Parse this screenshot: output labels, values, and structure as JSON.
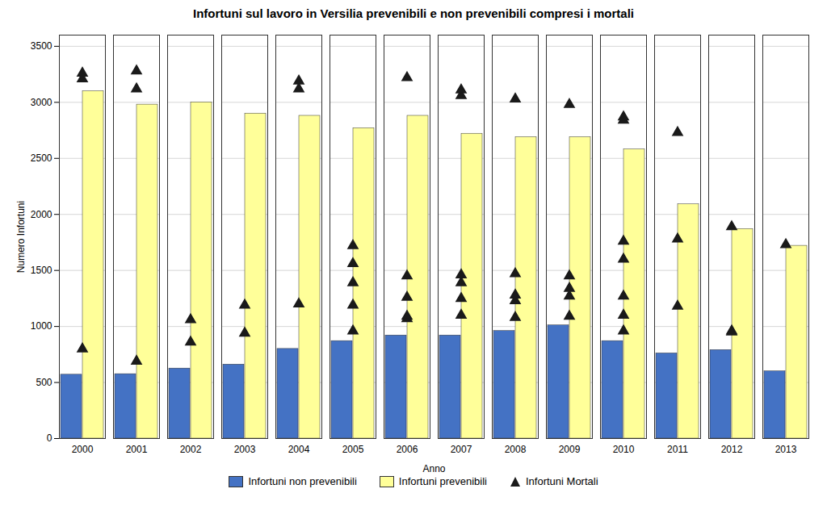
{
  "chart_data": {
    "type": "bar",
    "title": "Infortuni sul lavoro in Versilia prevenibili e non prevenibili compresi i mortali",
    "x_label": "Anno",
    "y_label": "Numero Infortuni",
    "categories": [
      "2000",
      "2001",
      "2002",
      "2003",
      "2004",
      "2005",
      "2006",
      "2007",
      "2008",
      "2009",
      "2010",
      "2011",
      "2012",
      "2013"
    ],
    "series": [
      {
        "name": "Infortuni non prevenibili",
        "color": "#4472C4",
        "type": "bar",
        "values": [
          570,
          575,
          625,
          660,
          800,
          870,
          920,
          920,
          960,
          1010,
          870,
          760,
          790,
          600
        ]
      },
      {
        "name": "Infortuni prevenibili",
        "color": "#FFFF99",
        "type": "bar",
        "values": [
          3100,
          2980,
          3000,
          2900,
          2880,
          2770,
          2880,
          2720,
          2690,
          2690,
          2580,
          2090,
          1870,
          1720
        ]
      },
      {
        "name": "Infortuni Mortali",
        "color": "#1a1a1a",
        "type": "scatter",
        "marker": "triangle",
        "values": [
          [
            800,
            3210,
            3260
          ],
          [
            690,
            3120,
            3280
          ],
          [
            1060,
            860
          ],
          [
            1190,
            940
          ],
          [
            1200,
            3120,
            3190
          ],
          [
            960,
            1190,
            1390,
            1560,
            1720
          ],
          [
            1070,
            1090,
            1260,
            1450,
            3220
          ],
          [
            1100,
            1250,
            1390,
            1460,
            3060,
            3110
          ],
          [
            1080,
            1230,
            1280,
            1470,
            3030
          ],
          [
            1090,
            1270,
            1340,
            1450,
            2980
          ],
          [
            960,
            1100,
            1270,
            1600,
            1760,
            2840,
            2870
          ],
          [
            1180,
            1780,
            2730
          ],
          [
            950,
            960,
            1890
          ],
          [
            1730
          ]
        ]
      }
    ],
    "ylim": [
      0,
      3600
    ],
    "yticks": [
      0,
      500,
      1000,
      1500,
      2000,
      2500,
      3000,
      3500
    ],
    "grid": true,
    "legend": "bottom"
  }
}
